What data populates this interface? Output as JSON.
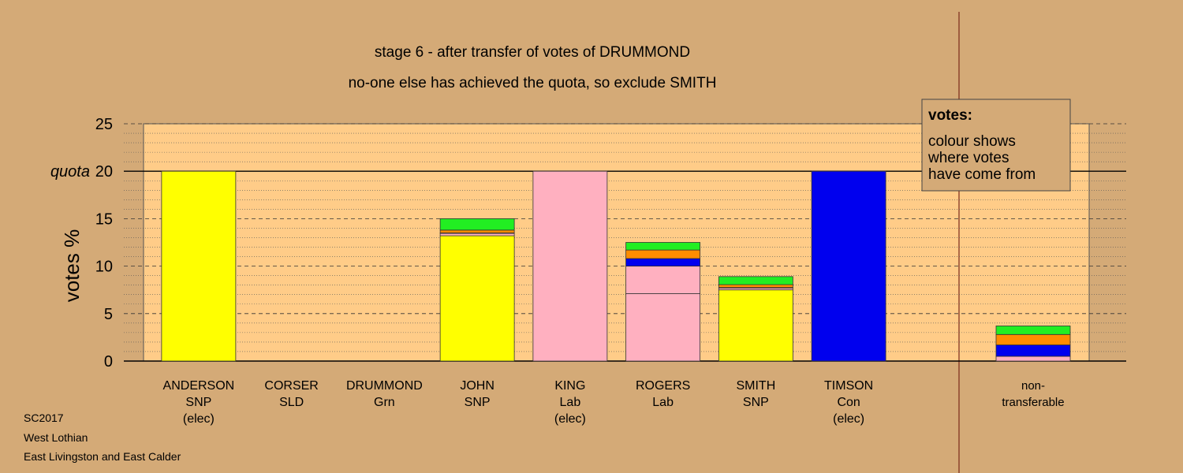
{
  "chart_data": {
    "type": "bar",
    "title": "stage 6 - after transfer of votes of DRUMMOND",
    "subtitle": "no-one else has achieved the quota, so exclude SMITH",
    "ylabel": "votes %",
    "ylim": [
      0,
      25
    ],
    "yticks": [
      "0",
      "5",
      "10",
      "15",
      "20",
      "25"
    ],
    "quota": {
      "value": 20,
      "label": "quota"
    },
    "grid": true,
    "legend": {
      "title": "votes:",
      "lines": [
        "colour shows",
        "where votes",
        "have come from"
      ],
      "placement": "top-right"
    },
    "colors": {
      "SNP": "#ffff00",
      "SLD": "#ff8c00",
      "Grn": "#22ee22",
      "Lab": "#ffb0c0",
      "Con": "#0000ee",
      "plot_bg": "#ffcc88",
      "page_bg": "#d4aa77",
      "divider": "#7a2a1a"
    },
    "candidates": [
      {
        "name": "ANDERSON",
        "party": "SNP",
        "status": "(elec)",
        "segments": [
          {
            "from": "SNP",
            "value": 20
          }
        ]
      },
      {
        "name": "CORSER",
        "party": "SLD",
        "status": "",
        "segments": []
      },
      {
        "name": "DRUMMOND",
        "party": "Grn",
        "status": "",
        "segments": []
      },
      {
        "name": "JOHN",
        "party": "SNP",
        "status": "",
        "segments": [
          {
            "from": "SNP",
            "value": 13.2
          },
          {
            "from": "Lab",
            "value": 0.25
          },
          {
            "from": "Con",
            "value": 0.05
          },
          {
            "from": "SLD",
            "value": 0.3
          },
          {
            "from": "Grn",
            "value": 1.2
          }
        ]
      },
      {
        "name": "KING",
        "party": "Lab",
        "status": "(elec)",
        "segments": [
          {
            "from": "Lab",
            "value": 20
          }
        ]
      },
      {
        "name": "ROGERS",
        "party": "Lab",
        "status": "",
        "segments": [
          {
            "from": "Lab",
            "value": 7.1
          },
          {
            "from": "Lab",
            "value": 2.9
          },
          {
            "from": "Con",
            "value": 0.8
          },
          {
            "from": "SLD",
            "value": 0.9
          },
          {
            "from": "Grn",
            "value": 0.8
          }
        ]
      },
      {
        "name": "SMITH",
        "party": "SNP",
        "status": "",
        "segments": [
          {
            "from": "SNP",
            "value": 7.5
          },
          {
            "from": "Lab",
            "value": 0.2
          },
          {
            "from": "Con",
            "value": 0.05
          },
          {
            "from": "SLD",
            "value": 0.3
          },
          {
            "from": "Grn",
            "value": 0.85
          }
        ]
      },
      {
        "name": "TIMSON",
        "party": "Con",
        "status": "(elec)",
        "segments": [
          {
            "from": "Con",
            "value": 20
          }
        ]
      }
    ],
    "non_transferable": {
      "label_line1": "non-",
      "label_line2": "transferable",
      "segments": [
        {
          "from": "Lab",
          "value": 0.5
        },
        {
          "from": "Con",
          "value": 1.2
        },
        {
          "from": "SLD",
          "value": 1.1
        },
        {
          "from": "Grn",
          "value": 0.9
        }
      ]
    }
  },
  "footer": {
    "line1": "SC2017",
    "line2": "West Lothian",
    "line3": "East Livingston and East Calder"
  }
}
